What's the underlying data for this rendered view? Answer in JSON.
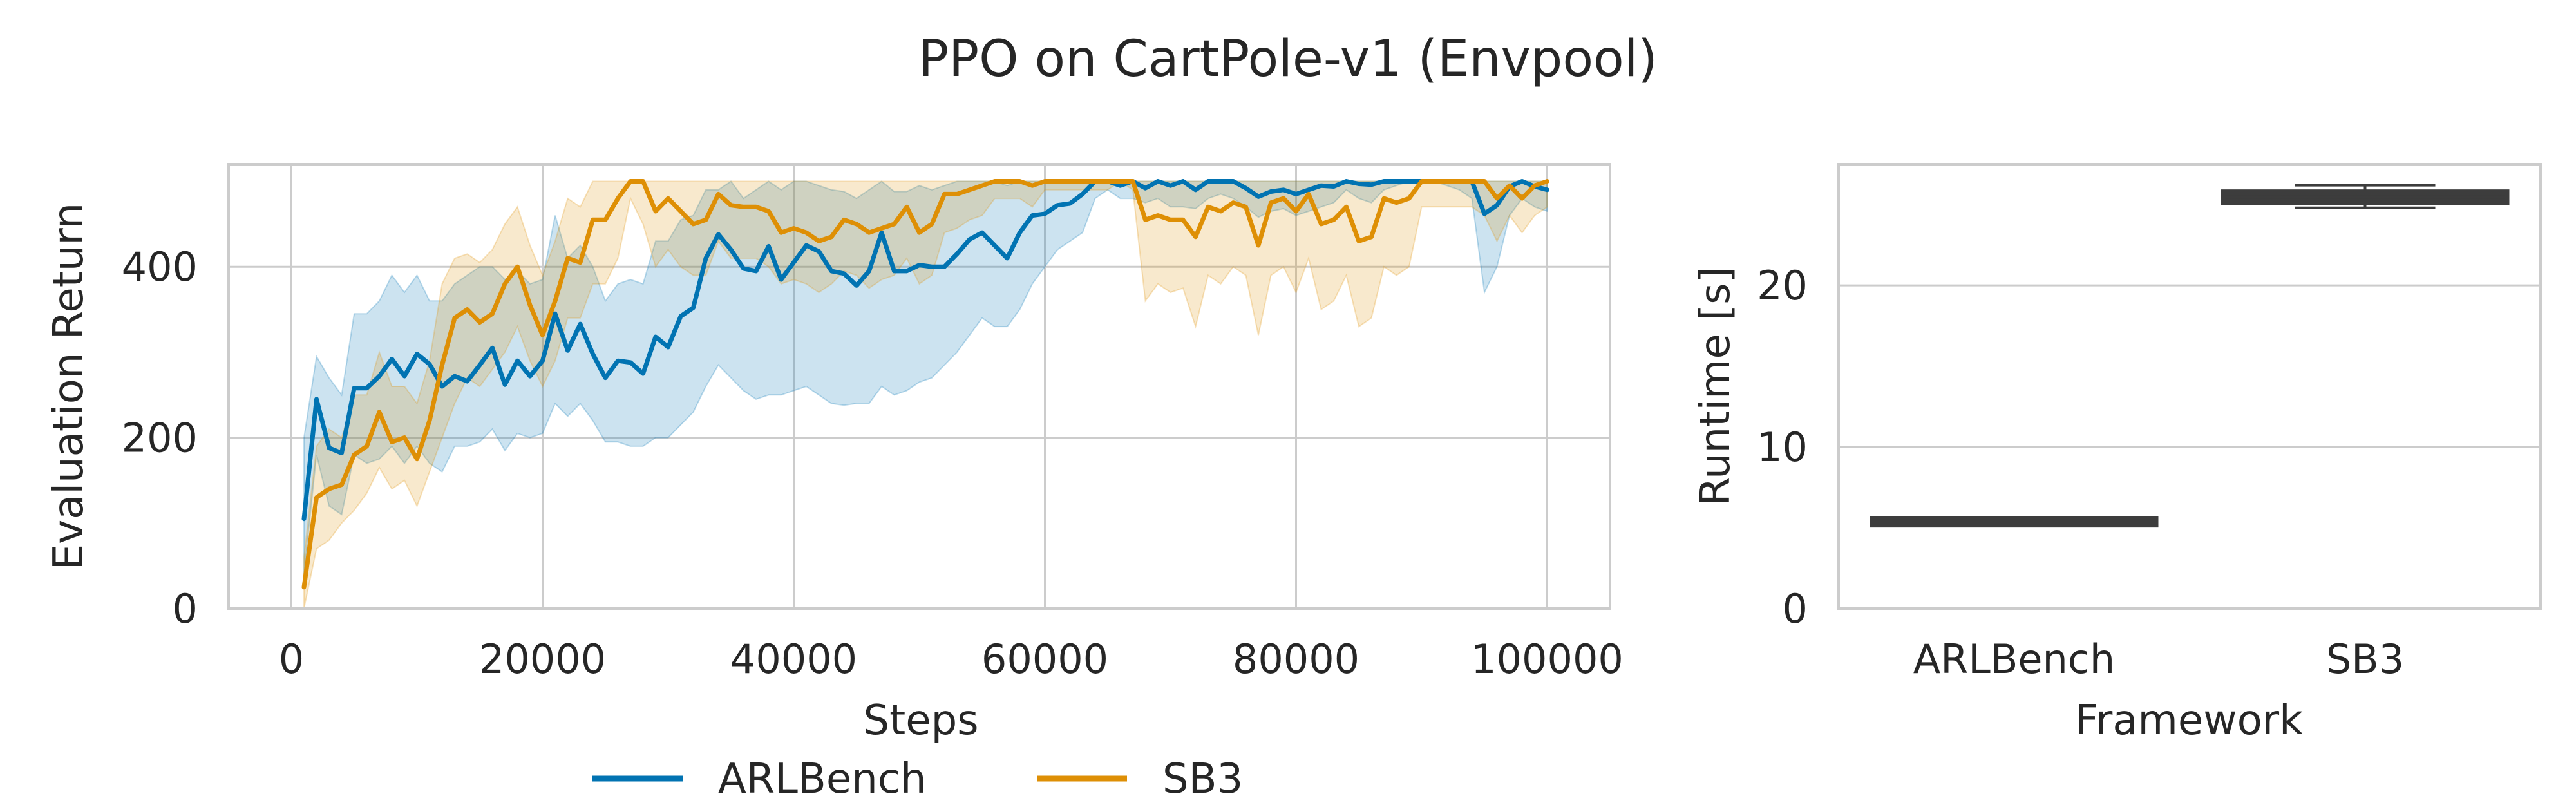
{
  "figure": {
    "title": "PPO on CartPole-v1 (Envpool)"
  },
  "legend": {
    "placement": "bottom-center",
    "items": [
      "ARLBench",
      "SB3"
    ]
  },
  "colors": {
    "ARLBench": "#0173b2",
    "SB3": "#de8f05",
    "box": "#3d3d3d",
    "grid": "#cccccc",
    "frame": "#cccccc"
  },
  "chart_data": [
    {
      "type": "line",
      "xlabel": "Steps",
      "ylabel": "Evaluation Return",
      "xlim": [
        -5000,
        105000
      ],
      "ylim": [
        0,
        520
      ],
      "xticks": [
        0,
        20000,
        40000,
        60000,
        80000,
        100000
      ],
      "yticks": [
        0,
        200,
        400
      ],
      "grid": true,
      "shaded_band": "confidence interval",
      "x": [
        1000,
        2000,
        3000,
        4000,
        5000,
        6000,
        7000,
        8000,
        9000,
        10000,
        11000,
        12000,
        13000,
        14000,
        15000,
        16000,
        17000,
        18000,
        19000,
        20000,
        21000,
        22000,
        23000,
        24000,
        25000,
        26000,
        27000,
        28000,
        29000,
        30000,
        31000,
        32000,
        33000,
        34000,
        35000,
        36000,
        37000,
        38000,
        39000,
        40000,
        41000,
        42000,
        43000,
        44000,
        45000,
        46000,
        47000,
        48000,
        49000,
        50000,
        51000,
        52000,
        53000,
        54000,
        55000,
        56000,
        57000,
        58000,
        59000,
        60000,
        61000,
        62000,
        63000,
        64000,
        65000,
        66000,
        67000,
        68000,
        69000,
        70000,
        71000,
        72000,
        73000,
        74000,
        75000,
        76000,
        77000,
        78000,
        79000,
        80000,
        81000,
        82000,
        83000,
        84000,
        85000,
        86000,
        87000,
        88000,
        89000,
        90000,
        91000,
        92000,
        93000,
        94000,
        95000,
        96000,
        97000,
        98000,
        99000,
        100000
      ],
      "series": [
        {
          "name": "ARLBench",
          "values": [
            105,
            245,
            188,
            182,
            258,
            258,
            272,
            292,
            272,
            298,
            286,
            260,
            272,
            266,
            285,
            305,
            262,
            290,
            272,
            290,
            345,
            302,
            333,
            298,
            270,
            290,
            288,
            275,
            318,
            306,
            342,
            352,
            410,
            438,
            420,
            398,
            395,
            424,
            385,
            405,
            425,
            418,
            395,
            392,
            378,
            395,
            440,
            395,
            395,
            402,
            400,
            400,
            415,
            432,
            440,
            425,
            410,
            440,
            460,
            462,
            472,
            474,
            485,
            500,
            500,
            495,
            500,
            492,
            500,
            495,
            500,
            490,
            500,
            500,
            500,
            492,
            482,
            488,
            490,
            485,
            490,
            495,
            494,
            500,
            497,
            496,
            500,
            500,
            500,
            500,
            500,
            500,
            500,
            500,
            462,
            472,
            494,
            500,
            494,
            490
          ],
          "lower": [
            40,
            180,
            120,
            110,
            180,
            170,
            175,
            190,
            170,
            190,
            170,
            160,
            190,
            190,
            195,
            210,
            185,
            205,
            200,
            205,
            240,
            225,
            240,
            220,
            195,
            195,
            190,
            190,
            200,
            200,
            215,
            230,
            260,
            285,
            270,
            255,
            245,
            250,
            250,
            255,
            260,
            250,
            240,
            238,
            240,
            240,
            260,
            250,
            255,
            265,
            270,
            285,
            300,
            320,
            340,
            330,
            330,
            350,
            380,
            400,
            420,
            430,
            440,
            480,
            490,
            480,
            480,
            475,
            480,
            470,
            470,
            468,
            480,
            485,
            480,
            470,
            458,
            465,
            468,
            460,
            465,
            470,
            475,
            490,
            480,
            475,
            490,
            495,
            500,
            500,
            500,
            495,
            490,
            480,
            370,
            400,
            460,
            480,
            470,
            465
          ],
          "upper": [
            200,
            295,
            270,
            250,
            345,
            345,
            360,
            390,
            370,
            390,
            360,
            360,
            380,
            390,
            400,
            400,
            385,
            395,
            380,
            385,
            460,
            410,
            425,
            400,
            360,
            380,
            385,
            380,
            430,
            430,
            455,
            460,
            490,
            490,
            500,
            480,
            490,
            500,
            490,
            500,
            500,
            495,
            490,
            488,
            480,
            490,
            500,
            488,
            488,
            495,
            490,
            495,
            500,
            500,
            500,
            500,
            495,
            500,
            500,
            500,
            500,
            500,
            500,
            500,
            500,
            500,
            500,
            500,
            500,
            500,
            500,
            500,
            500,
            500,
            500,
            500,
            500,
            500,
            500,
            500,
            500,
            500,
            500,
            500,
            500,
            500,
            500,
            500,
            500,
            500,
            500,
            500,
            500,
            500,
            500,
            500,
            500,
            500,
            500,
            500
          ]
        },
        {
          "name": "SB3",
          "values": [
            25,
            130,
            140,
            145,
            180,
            190,
            230,
            195,
            200,
            175,
            220,
            285,
            340,
            350,
            335,
            345,
            380,
            400,
            355,
            320,
            360,
            410,
            405,
            455,
            455,
            480,
            500,
            500,
            465,
            480,
            465,
            450,
            455,
            485,
            472,
            470,
            470,
            465,
            440,
            445,
            440,
            430,
            435,
            455,
            450,
            440,
            445,
            450,
            470,
            440,
            450,
            485,
            485,
            490,
            495,
            500,
            500,
            500,
            495,
            500,
            500,
            500,
            500,
            500,
            500,
            500,
            500,
            455,
            460,
            455,
            455,
            435,
            470,
            465,
            475,
            470,
            425,
            475,
            480,
            465,
            485,
            450,
            455,
            470,
            430,
            435,
            480,
            475,
            480,
            500,
            500,
            500,
            500,
            500,
            500,
            480,
            495,
            480,
            495,
            500
          ],
          "lower": [
            0,
            70,
            80,
            100,
            115,
            135,
            165,
            140,
            150,
            120,
            160,
            200,
            240,
            270,
            260,
            280,
            300,
            330,
            290,
            260,
            290,
            340,
            340,
            380,
            380,
            410,
            480,
            450,
            400,
            420,
            400,
            390,
            390,
            430,
            410,
            410,
            410,
            400,
            380,
            385,
            380,
            370,
            380,
            395,
            390,
            375,
            385,
            390,
            410,
            380,
            390,
            440,
            445,
            455,
            460,
            480,
            480,
            480,
            470,
            490,
            490,
            490,
            490,
            490,
            490,
            500,
            490,
            360,
            380,
            370,
            375,
            330,
            390,
            380,
            400,
            390,
            320,
            390,
            400,
            370,
            410,
            350,
            360,
            390,
            330,
            340,
            400,
            390,
            400,
            470,
            470,
            470,
            470,
            470,
            460,
            430,
            460,
            440,
            460,
            470
          ],
          "upper": [
            60,
            190,
            210,
            200,
            250,
            250,
            300,
            260,
            260,
            240,
            290,
            380,
            410,
            415,
            405,
            420,
            450,
            470,
            425,
            390,
            430,
            480,
            470,
            500,
            500,
            500,
            500,
            500,
            500,
            500,
            500,
            500,
            500,
            500,
            500,
            500,
            500,
            500,
            500,
            500,
            500,
            500,
            500,
            500,
            500,
            500,
            500,
            500,
            500,
            500,
            500,
            500,
            500,
            500,
            500,
            500,
            500,
            500,
            500,
            500,
            500,
            500,
            500,
            500,
            500,
            500,
            500,
            500,
            500,
            500,
            500,
            500,
            500,
            500,
            500,
            500,
            500,
            500,
            500,
            500,
            500,
            500,
            500,
            500,
            500,
            500,
            500,
            500,
            500,
            500,
            500,
            500,
            500,
            500,
            500,
            500,
            500,
            500,
            500,
            500
          ]
        }
      ]
    },
    {
      "type": "box",
      "xlabel": "Framework",
      "ylabel": "Runtime [s]",
      "ylim": [
        0,
        27.5
      ],
      "yticks": [
        0,
        10,
        20
      ],
      "grid": true,
      "categories": [
        "ARLBench",
        "SB3"
      ],
      "boxes": [
        {
          "name": "ARLBench",
          "min": 5.25,
          "q1": 5.3,
          "median": 5.38,
          "q3": 5.45,
          "max": 5.55
        },
        {
          "name": "SB3",
          "min": 24.8,
          "q1": 25.2,
          "median": 25.45,
          "q3": 25.7,
          "max": 26.2
        }
      ]
    }
  ]
}
